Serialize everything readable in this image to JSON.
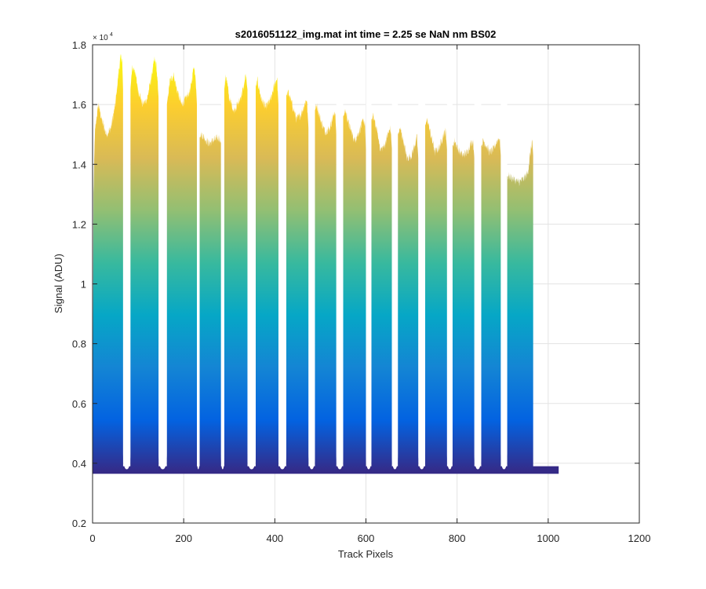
{
  "chart_data": {
    "type": "area",
    "title": "s2016051122_img.mat int time = 2.25 se  NaN nm BS02",
    "xlabel": "Track Pixels",
    "ylabel": "Signal (ADU)",
    "y_exponent_base": "× 10",
    "y_exponent_power": "4",
    "xlim": [
      0,
      1200
    ],
    "ylim": [
      0.2,
      1.8
    ],
    "y_scale_note": "values in units of 10^4 ADU",
    "x_ticks": [
      0,
      200,
      400,
      600,
      800,
      1000,
      1200
    ],
    "x_tick_labels": [
      "0",
      "200",
      "400",
      "600",
      "800",
      "1000",
      "1200"
    ],
    "y_ticks": [
      0.2,
      0.4,
      0.6,
      0.8,
      1.0,
      1.2,
      1.4,
      1.6,
      1.8
    ],
    "y_tick_labels": [
      "0.2",
      "0.4",
      "0.6",
      "0.8",
      "1",
      "1.2",
      "1.4",
      "1.6",
      "1.8"
    ],
    "grid": true,
    "colormap": [
      "#352a87",
      "#0363e1",
      "#1485d4",
      "#06a7c6",
      "#38b99e",
      "#92bf73",
      "#d9ba56",
      "#fcce2e",
      "#f9fb0e"
    ],
    "baseline": 0.37,
    "gap_floor": 0.38,
    "series": [
      {
        "values": [
          [
            0,
            0.38
          ],
          [
            2,
            1.3
          ],
          [
            5,
            1.5
          ],
          [
            9,
            1.56
          ],
          [
            13,
            1.6
          ],
          [
            20,
            1.55
          ],
          [
            30,
            1.5
          ],
          [
            40,
            1.52
          ],
          [
            50,
            1.6
          ],
          [
            58,
            1.72
          ],
          [
            62,
            1.76
          ],
          [
            65,
            1.75
          ],
          [
            67,
            1.65
          ]
        ]
      },
      {
        "values": [
          [
            83,
            1.65
          ],
          [
            87,
            1.72
          ],
          [
            92,
            1.72
          ],
          [
            100,
            1.65
          ],
          [
            110,
            1.6
          ],
          [
            120,
            1.62
          ],
          [
            130,
            1.7
          ],
          [
            136,
            1.75
          ],
          [
            140,
            1.73
          ],
          [
            145,
            1.62
          ]
        ]
      },
      {
        "values": [
          [
            163,
            1.6
          ],
          [
            170,
            1.68
          ],
          [
            178,
            1.7
          ],
          [
            185,
            1.65
          ],
          [
            195,
            1.6
          ],
          [
            205,
            1.62
          ],
          [
            215,
            1.65
          ],
          [
            222,
            1.73
          ],
          [
            226,
            1.7
          ],
          [
            229,
            1.6
          ]
        ]
      },
      {
        "values": [
          [
            235,
            1.49
          ],
          [
            240,
            1.5
          ],
          [
            255,
            1.47
          ],
          [
            265,
            1.48
          ],
          [
            278,
            1.49
          ],
          [
            282,
            1.47
          ]
        ]
      },
      {
        "values": [
          [
            289,
            1.65
          ],
          [
            293,
            1.7
          ],
          [
            300,
            1.62
          ],
          [
            310,
            1.58
          ],
          [
            322,
            1.61
          ],
          [
            332,
            1.66
          ],
          [
            336,
            1.7
          ],
          [
            340,
            1.65
          ]
        ]
      },
      {
        "values": [
          [
            358,
            1.66
          ],
          [
            362,
            1.68
          ],
          [
            370,
            1.62
          ],
          [
            380,
            1.59
          ],
          [
            392,
            1.62
          ],
          [
            400,
            1.67
          ],
          [
            405,
            1.69
          ],
          [
            408,
            1.6
          ]
        ]
      },
      {
        "values": [
          [
            425,
            1.63
          ],
          [
            430,
            1.64
          ],
          [
            438,
            1.6
          ],
          [
            448,
            1.55
          ],
          [
            458,
            1.57
          ],
          [
            465,
            1.6
          ],
          [
            470,
            1.62
          ],
          [
            474,
            1.52
          ]
        ]
      },
      {
        "values": [
          [
            488,
            1.58
          ],
          [
            492,
            1.6
          ],
          [
            500,
            1.55
          ],
          [
            510,
            1.51
          ],
          [
            520,
            1.52
          ],
          [
            528,
            1.56
          ],
          [
            532,
            1.58
          ],
          [
            535,
            1.5
          ]
        ]
      },
      {
        "values": [
          [
            550,
            1.56
          ],
          [
            555,
            1.58
          ],
          [
            563,
            1.53
          ],
          [
            575,
            1.48
          ],
          [
            585,
            1.51
          ],
          [
            595,
            1.55
          ],
          [
            598,
            1.53
          ],
          [
            600,
            1.45
          ]
        ]
      },
      {
        "values": [
          [
            612,
            1.55
          ],
          [
            616,
            1.56
          ],
          [
            623,
            1.52
          ],
          [
            632,
            1.45
          ],
          [
            640,
            1.46
          ],
          [
            648,
            1.5
          ],
          [
            654,
            1.52
          ],
          [
            657,
            1.45
          ]
        ]
      },
      {
        "values": [
          [
            670,
            1.5
          ],
          [
            675,
            1.52
          ],
          [
            682,
            1.48
          ],
          [
            690,
            1.42
          ],
          [
            700,
            1.43
          ],
          [
            708,
            1.47
          ],
          [
            712,
            1.49
          ],
          [
            715,
            1.42
          ]
        ]
      },
      {
        "values": [
          [
            730,
            1.53
          ],
          [
            735,
            1.55
          ],
          [
            742,
            1.5
          ],
          [
            752,
            1.44
          ],
          [
            762,
            1.46
          ],
          [
            770,
            1.5
          ],
          [
            775,
            1.51
          ],
          [
            778,
            1.45
          ]
        ]
      },
      {
        "values": [
          [
            790,
            1.46
          ],
          [
            795,
            1.48
          ],
          [
            802,
            1.45
          ],
          [
            812,
            1.43
          ],
          [
            822,
            1.44
          ],
          [
            830,
            1.47
          ],
          [
            835,
            1.48
          ],
          [
            838,
            1.42
          ]
        ]
      },
      {
        "values": [
          [
            853,
            1.46
          ],
          [
            858,
            1.48
          ],
          [
            865,
            1.46
          ],
          [
            872,
            1.44
          ],
          [
            880,
            1.45
          ],
          [
            888,
            1.48
          ],
          [
            893,
            1.49
          ],
          [
            896,
            1.43
          ]
        ]
      },
      {
        "values": [
          [
            910,
            1.36
          ],
          [
            915,
            1.36
          ],
          [
            925,
            1.35
          ],
          [
            935,
            1.34
          ],
          [
            945,
            1.35
          ],
          [
            955,
            1.37
          ],
          [
            962,
            1.45
          ],
          [
            965,
            1.48
          ],
          [
            967,
            1.43
          ]
        ]
      }
    ]
  }
}
